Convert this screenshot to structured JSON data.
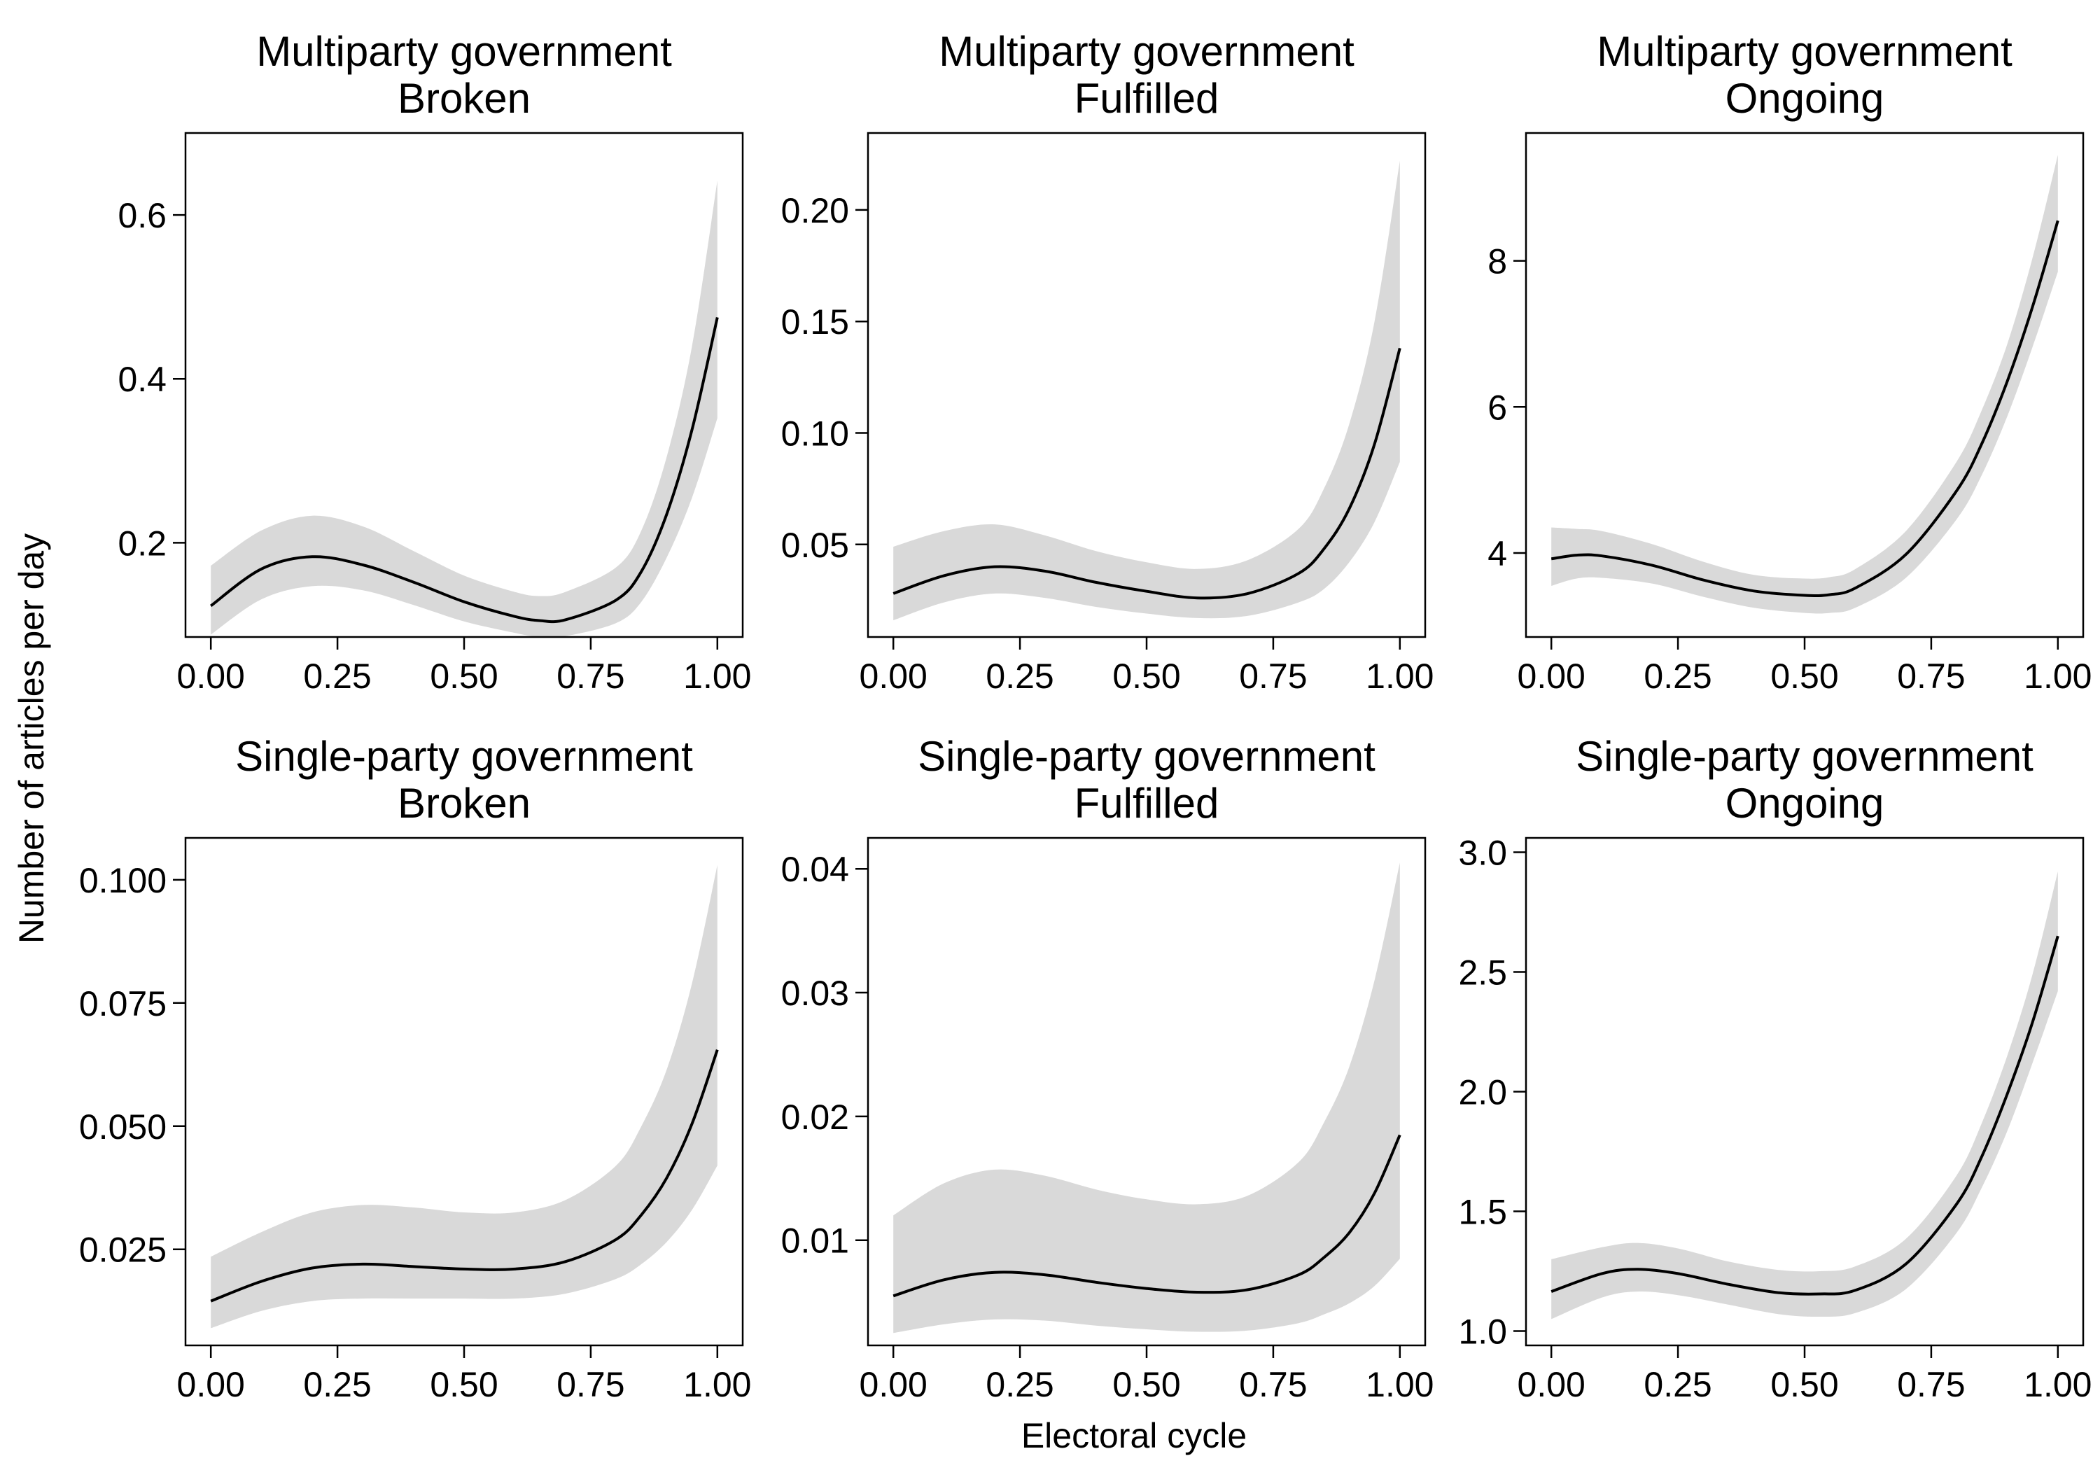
{
  "figure": {
    "xlabel": "Electoral cycle",
    "ylabel": "Number of articles per day",
    "band_color": "#d9d9d9",
    "line_color": "#000000"
  },
  "chart_data": [
    {
      "type": "line",
      "title": "Multiparty government",
      "subtitle": "Broken",
      "xlim": [
        -0.05,
        1.05
      ],
      "ylim": [
        0.085,
        0.7
      ],
      "xticks": [
        0.0,
        0.25,
        0.5,
        0.75,
        1.0
      ],
      "xtick_labels": [
        "0.00",
        "0.25",
        "0.50",
        "0.75",
        "1.00"
      ],
      "yticks": [
        0.2,
        0.4,
        0.6
      ],
      "ytick_labels": [
        "0.2",
        "0.4",
        "0.6"
      ],
      "x": [
        0.0,
        0.1,
        0.2,
        0.3,
        0.4,
        0.5,
        0.6,
        0.65,
        0.7,
        0.8,
        0.85,
        0.9,
        0.95,
        1.0
      ],
      "y": [
        0.123,
        0.168,
        0.183,
        0.173,
        0.152,
        0.128,
        0.11,
        0.105,
        0.106,
        0.13,
        0.165,
        0.235,
        0.338,
        0.475
      ],
      "ci_lower": [
        0.088,
        0.131,
        0.147,
        0.142,
        0.124,
        0.104,
        0.09,
        0.085,
        0.086,
        0.102,
        0.128,
        0.182,
        0.255,
        0.352
      ],
      "ci_upper": [
        0.172,
        0.215,
        0.233,
        0.22,
        0.19,
        0.16,
        0.14,
        0.135,
        0.14,
        0.17,
        0.215,
        0.305,
        0.44,
        0.642
      ]
    },
    {
      "type": "line",
      "title": "Multiparty government",
      "subtitle": "Fulfilled",
      "xlim": [
        -0.05,
        1.05
      ],
      "ylim": [
        0.0085,
        0.2345
      ],
      "xticks": [
        0.0,
        0.25,
        0.5,
        0.75,
        1.0
      ],
      "xtick_labels": [
        "0.00",
        "0.25",
        "0.50",
        "0.75",
        "1.00"
      ],
      "yticks": [
        0.05,
        0.1,
        0.15,
        0.2
      ],
      "ytick_labels": [
        "0.05",
        "0.10",
        "0.15",
        "0.20"
      ],
      "x": [
        0.0,
        0.1,
        0.2,
        0.3,
        0.4,
        0.5,
        0.6,
        0.7,
        0.8,
        0.85,
        0.9,
        0.95,
        1.0
      ],
      "y": [
        0.028,
        0.036,
        0.04,
        0.038,
        0.033,
        0.029,
        0.026,
        0.028,
        0.037,
        0.048,
        0.066,
        0.095,
        0.138
      ],
      "ci_lower": [
        0.016,
        0.024,
        0.028,
        0.026,
        0.022,
        0.019,
        0.017,
        0.018,
        0.024,
        0.03,
        0.042,
        0.06,
        0.087
      ],
      "ci_upper": [
        0.049,
        0.056,
        0.059,
        0.054,
        0.047,
        0.042,
        0.039,
        0.043,
        0.057,
        0.075,
        0.104,
        0.15,
        0.222
      ]
    },
    {
      "type": "line",
      "title": "Multiparty government",
      "subtitle": "Ongoing",
      "xlim": [
        -0.05,
        1.05
      ],
      "ylim": [
        2.85,
        9.75
      ],
      "xticks": [
        0.0,
        0.25,
        0.5,
        0.75,
        1.0
      ],
      "xtick_labels": [
        "0.00",
        "0.25",
        "0.50",
        "0.75",
        "1.00"
      ],
      "yticks": [
        4,
        6,
        8
      ],
      "ytick_labels": [
        "4",
        "6",
        "8"
      ],
      "x": [
        0.0,
        0.05,
        0.1,
        0.2,
        0.3,
        0.4,
        0.5,
        0.55,
        0.6,
        0.7,
        0.8,
        0.85,
        0.9,
        0.95,
        1.0
      ],
      "y": [
        3.92,
        3.97,
        3.96,
        3.83,
        3.63,
        3.48,
        3.42,
        3.43,
        3.52,
        3.98,
        4.85,
        5.5,
        6.35,
        7.37,
        8.55
      ],
      "ci_lower": [
        3.55,
        3.65,
        3.66,
        3.58,
        3.4,
        3.25,
        3.18,
        3.18,
        3.25,
        3.66,
        4.46,
        5.07,
        5.87,
        6.82,
        7.85
      ],
      "ci_upper": [
        4.35,
        4.33,
        4.3,
        4.12,
        3.88,
        3.7,
        3.65,
        3.67,
        3.78,
        4.3,
        5.25,
        5.96,
        6.86,
        8.04,
        9.45
      ]
    },
    {
      "type": "line",
      "title": "Single-party government",
      "subtitle": "Broken",
      "xlim": [
        -0.05,
        1.05
      ],
      "ylim": [
        0.0055,
        0.1085
      ],
      "xticks": [
        0.0,
        0.25,
        0.5,
        0.75,
        1.0
      ],
      "xtick_labels": [
        "0.00",
        "0.25",
        "0.50",
        "0.75",
        "1.00"
      ],
      "yticks": [
        0.025,
        0.05,
        0.075,
        0.1
      ],
      "ytick_labels": [
        "0.025",
        "0.050",
        "0.075",
        "0.100"
      ],
      "x": [
        0.0,
        0.1,
        0.2,
        0.3,
        0.4,
        0.5,
        0.6,
        0.7,
        0.8,
        0.85,
        0.9,
        0.95,
        1.0
      ],
      "y": [
        0.0145,
        0.0185,
        0.0212,
        0.022,
        0.0215,
        0.021,
        0.021,
        0.0225,
        0.027,
        0.032,
        0.0395,
        0.0505,
        0.0655
      ],
      "ci_lower": [
        0.009,
        0.0125,
        0.0145,
        0.015,
        0.015,
        0.015,
        0.015,
        0.016,
        0.019,
        0.022,
        0.0265,
        0.033,
        0.042
      ],
      "ci_upper": [
        0.0235,
        0.0285,
        0.0325,
        0.034,
        0.0335,
        0.0325,
        0.0325,
        0.035,
        0.042,
        0.05,
        0.0615,
        0.079,
        0.103
      ]
    },
    {
      "type": "line",
      "title": "Single-party government",
      "subtitle": "Fulfilled",
      "xlim": [
        -0.05,
        1.05
      ],
      "ylim": [
        0.0015,
        0.0425
      ],
      "xticks": [
        0.0,
        0.25,
        0.5,
        0.75,
        1.0
      ],
      "xtick_labels": [
        "0.00",
        "0.25",
        "0.50",
        "0.75",
        "1.00"
      ],
      "yticks": [
        0.01,
        0.02,
        0.03,
        0.04
      ],
      "ytick_labels": [
        "0.01",
        "0.02",
        "0.03",
        "0.04"
      ],
      "x": [
        0.0,
        0.1,
        0.2,
        0.3,
        0.4,
        0.5,
        0.6,
        0.7,
        0.8,
        0.85,
        0.9,
        0.95,
        1.0
      ],
      "y": [
        0.0055,
        0.0068,
        0.0074,
        0.0072,
        0.0066,
        0.0061,
        0.0058,
        0.006,
        0.0072,
        0.0086,
        0.0106,
        0.0138,
        0.0185
      ],
      "ci_lower": [
        0.0025,
        0.0032,
        0.0036,
        0.0035,
        0.0031,
        0.0028,
        0.0026,
        0.0027,
        0.0033,
        0.004,
        0.0049,
        0.0063,
        0.0085
      ],
      "ci_upper": [
        0.012,
        0.0146,
        0.0157,
        0.0152,
        0.0141,
        0.0133,
        0.0129,
        0.0136,
        0.0163,
        0.0195,
        0.024,
        0.031,
        0.0405
      ]
    },
    {
      "type": "line",
      "title": "Single-party government",
      "subtitle": "Ongoing",
      "xlim": [
        -0.05,
        1.05
      ],
      "ylim": [
        0.94,
        3.06
      ],
      "xticks": [
        0.0,
        0.25,
        0.5,
        0.75,
        1.0
      ],
      "xtick_labels": [
        "0.00",
        "0.25",
        "0.50",
        "0.75",
        "1.00"
      ],
      "yticks": [
        1.0,
        1.5,
        2.0,
        2.5,
        3.0
      ],
      "ytick_labels": [
        "1.0",
        "1.5",
        "2.0",
        "2.5",
        "3.0"
      ],
      "x": [
        0.0,
        0.1,
        0.17,
        0.25,
        0.35,
        0.45,
        0.53,
        0.6,
        0.7,
        0.8,
        0.85,
        0.9,
        0.95,
        1.0
      ],
      "y": [
        1.165,
        1.24,
        1.258,
        1.24,
        1.195,
        1.16,
        1.155,
        1.17,
        1.28,
        1.53,
        1.73,
        1.99,
        2.29,
        2.65
      ],
      "ci_lower": [
        1.05,
        1.14,
        1.165,
        1.15,
        1.11,
        1.07,
        1.06,
        1.075,
        1.175,
        1.41,
        1.6,
        1.835,
        2.12,
        2.42
      ],
      "ci_upper": [
        1.3,
        1.35,
        1.368,
        1.345,
        1.29,
        1.255,
        1.25,
        1.27,
        1.385,
        1.65,
        1.87,
        2.15,
        2.49,
        2.92
      ]
    }
  ]
}
